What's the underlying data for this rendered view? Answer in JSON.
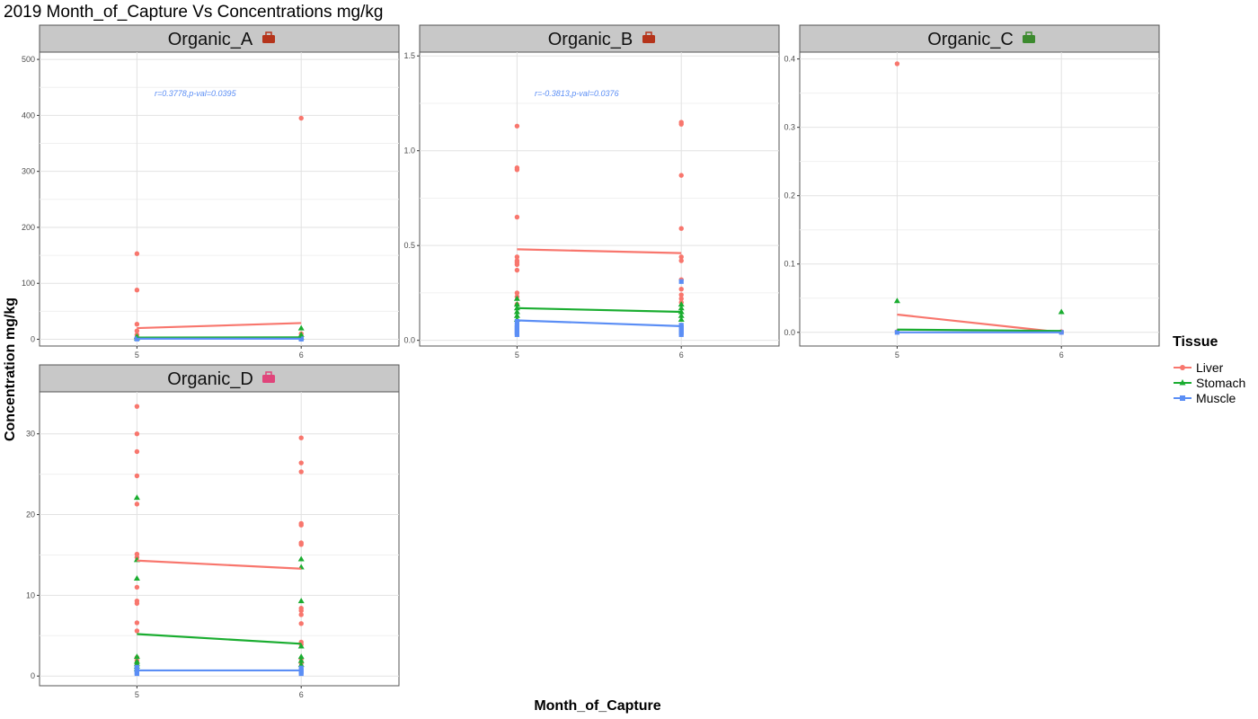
{
  "title": "2019 Month_of_Capture Vs Concentrations mg/kg",
  "xlabel": "Month_of_Capture",
  "ylabel": "Concentration mg/kg",
  "legend": {
    "title": "Tissue",
    "items": [
      {
        "label": "Liver",
        "color": "#f8766d",
        "shape": "circle"
      },
      {
        "label": "Stomach",
        "color": "#1aad30",
        "shape": "triangle"
      },
      {
        "label": "Muscle",
        "color": "#5b8ef5",
        "shape": "square"
      }
    ]
  },
  "chart_data": [
    {
      "type": "scatter",
      "panel": "Organic_A",
      "icon": "toolbox-icon",
      "annotation": "r=0.3778,p-val=0.0395",
      "x_ticks": [
        "5",
        "6"
      ],
      "y_ticks": [
        0,
        100,
        200,
        300,
        400,
        500
      ],
      "ylim": [
        -12,
        513
      ],
      "grid": true,
      "series": [
        {
          "name": "Liver",
          "points": [
            [
              5,
              153
            ],
            [
              5,
              88
            ],
            [
              5,
              27
            ],
            [
              5,
              15
            ],
            [
              5,
              8
            ],
            [
              5,
              3
            ],
            [
              5,
              1
            ],
            [
              6,
              395
            ],
            [
              6,
              10
            ],
            [
              6,
              4
            ],
            [
              6,
              2
            ],
            [
              6,
              0.5
            ]
          ],
          "trend": [
            [
              5,
              20
            ],
            [
              6,
              29
            ]
          ]
        },
        {
          "name": "Stomach",
          "points": [
            [
              5,
              5
            ],
            [
              5,
              2
            ],
            [
              6,
              20
            ],
            [
              6,
              8
            ],
            [
              6,
              3
            ]
          ],
          "trend": [
            [
              5,
              3
            ],
            [
              6,
              3.5
            ]
          ]
        },
        {
          "name": "Muscle",
          "points": [
            [
              5,
              1
            ],
            [
              5,
              0.5
            ],
            [
              6,
              1
            ],
            [
              6,
              0.3
            ]
          ],
          "trend": [
            [
              5,
              1
            ],
            [
              6,
              1
            ]
          ]
        }
      ]
    },
    {
      "type": "scatter",
      "panel": "Organic_B",
      "icon": "toolbox-icon",
      "annotation": "r=-0.3813,p-val=0.0376",
      "x_ticks": [
        "5",
        "6"
      ],
      "y_ticks": [
        0.0,
        0.5,
        1.0,
        1.5
      ],
      "y_tick_labels": [
        "0.0",
        "0.5",
        "1.0",
        "1.5"
      ],
      "ylim": [
        -0.03,
        1.52
      ],
      "grid": true,
      "series": [
        {
          "name": "Liver",
          "points": [
            [
              5,
              1.13
            ],
            [
              5,
              0.91
            ],
            [
              5,
              0.9
            ],
            [
              5,
              0.65
            ],
            [
              5,
              0.44
            ],
            [
              5,
              0.42
            ],
            [
              5,
              0.41
            ],
            [
              5,
              0.4
            ],
            [
              5,
              0.37
            ],
            [
              5,
              0.25
            ],
            [
              5,
              0.23
            ],
            [
              5,
              0.19
            ],
            [
              6,
              1.15
            ],
            [
              6,
              1.14
            ],
            [
              6,
              0.87
            ],
            [
              6,
              0.59
            ],
            [
              6,
              0.44
            ],
            [
              6,
              0.42
            ],
            [
              6,
              0.32
            ],
            [
              6,
              0.27
            ],
            [
              6,
              0.24
            ],
            [
              6,
              0.22
            ],
            [
              6,
              0.2
            ]
          ],
          "trend": [
            [
              5,
              0.48
            ],
            [
              6,
              0.46
            ]
          ]
        },
        {
          "name": "Stomach",
          "points": [
            [
              5,
              0.22
            ],
            [
              5,
              0.19
            ],
            [
              5,
              0.17
            ],
            [
              5,
              0.15
            ],
            [
              5,
              0.13
            ],
            [
              5,
              0.11
            ],
            [
              6,
              0.19
            ],
            [
              6,
              0.17
            ],
            [
              6,
              0.15
            ],
            [
              6,
              0.13
            ],
            [
              6,
              0.11
            ]
          ],
          "trend": [
            [
              5,
              0.17
            ],
            [
              6,
              0.15
            ]
          ]
        },
        {
          "name": "Muscle",
          "points": [
            [
              5,
              0.1
            ],
            [
              5,
              0.08
            ],
            [
              5,
              0.07
            ],
            [
              5,
              0.06
            ],
            [
              5,
              0.05
            ],
            [
              5,
              0.04
            ],
            [
              5,
              0.03
            ],
            [
              6,
              0.31
            ],
            [
              6,
              0.08
            ],
            [
              6,
              0.07
            ],
            [
              6,
              0.06
            ],
            [
              6,
              0.05
            ],
            [
              6,
              0.04
            ],
            [
              6,
              0.03
            ]
          ],
          "trend": [
            [
              5,
              0.105
            ],
            [
              6,
              0.075
            ]
          ]
        }
      ]
    },
    {
      "type": "scatter",
      "panel": "Organic_C",
      "icon": "tractor-icon",
      "annotation": "",
      "x_ticks": [
        "5",
        "6"
      ],
      "y_ticks": [
        0.0,
        0.1,
        0.2,
        0.3,
        0.4
      ],
      "y_tick_labels": [
        "0.0",
        "0.1",
        "0.2",
        "0.3",
        "0.4"
      ],
      "ylim": [
        -0.02,
        0.41
      ],
      "grid": true,
      "series": [
        {
          "name": "Liver",
          "points": [
            [
              5,
              0.393
            ],
            [
              5,
              0.001
            ],
            [
              6,
              0.001
            ],
            [
              6,
              0.0
            ]
          ],
          "trend": [
            [
              5,
              0.026
            ],
            [
              6,
              0.0
            ]
          ]
        },
        {
          "name": "Stomach",
          "points": [
            [
              5,
              0.046
            ],
            [
              6,
              0.03
            ]
          ],
          "trend": [
            [
              5,
              0.004
            ],
            [
              6,
              0.002
            ]
          ]
        },
        {
          "name": "Muscle",
          "points": [
            [
              5,
              0.0
            ],
            [
              6,
              0.0
            ]
          ],
          "trend": [
            [
              5,
              0.0
            ],
            [
              6,
              0.0
            ]
          ]
        }
      ]
    },
    {
      "type": "scatter",
      "panel": "Organic_D",
      "icon": "pill-icon",
      "annotation": "",
      "x_ticks": [
        "5",
        "6"
      ],
      "y_ticks": [
        0,
        10,
        20,
        30
      ],
      "ylim": [
        -1.2,
        35.2
      ],
      "grid": true,
      "series": [
        {
          "name": "Liver",
          "points": [
            [
              5,
              33.4
            ],
            [
              5,
              30.0
            ],
            [
              5,
              27.8
            ],
            [
              5,
              24.8
            ],
            [
              5,
              21.3
            ],
            [
              5,
              15.1
            ],
            [
              5,
              14.7
            ],
            [
              5,
              11.0
            ],
            [
              5,
              9.3
            ],
            [
              5,
              9.0
            ],
            [
              5,
              6.6
            ],
            [
              5,
              5.6
            ],
            [
              5,
              2.3
            ],
            [
              5,
              1.9
            ],
            [
              5,
              1.4
            ],
            [
              6,
              29.5
            ],
            [
              6,
              26.4
            ],
            [
              6,
              25.3
            ],
            [
              6,
              18.9
            ],
            [
              6,
              18.7
            ],
            [
              6,
              16.5
            ],
            [
              6,
              16.3
            ],
            [
              6,
              8.4
            ],
            [
              6,
              8.1
            ],
            [
              6,
              7.6
            ],
            [
              6,
              6.5
            ],
            [
              6,
              4.2
            ],
            [
              6,
              3.9
            ],
            [
              6,
              2.1
            ],
            [
              6,
              1.6
            ]
          ],
          "trend": [
            [
              5,
              14.3
            ],
            [
              6,
              13.3
            ]
          ]
        },
        {
          "name": "Stomach",
          "points": [
            [
              5,
              22.1
            ],
            [
              5,
              14.4
            ],
            [
              5,
              12.1
            ],
            [
              5,
              2.4
            ],
            [
              5,
              1.8
            ],
            [
              5,
              1.5
            ],
            [
              5,
              1.2
            ],
            [
              5,
              0.9
            ],
            [
              6,
              14.5
            ],
            [
              6,
              13.5
            ],
            [
              6,
              9.3
            ],
            [
              6,
              3.7
            ],
            [
              6,
              2.4
            ],
            [
              6,
              1.9
            ],
            [
              6,
              1.4
            ]
          ],
          "trend": [
            [
              5,
              5.2
            ],
            [
              6,
              4.0
            ]
          ]
        },
        {
          "name": "Muscle",
          "points": [
            [
              5,
              1.1
            ],
            [
              5,
              0.8
            ],
            [
              5,
              0.6
            ],
            [
              5,
              0.4
            ],
            [
              5,
              0.3
            ],
            [
              6,
              1.0
            ],
            [
              6,
              0.7
            ],
            [
              6,
              0.5
            ],
            [
              6,
              0.3
            ]
          ],
          "trend": [
            [
              5,
              0.7
            ],
            [
              6,
              0.7
            ]
          ]
        }
      ]
    }
  ]
}
